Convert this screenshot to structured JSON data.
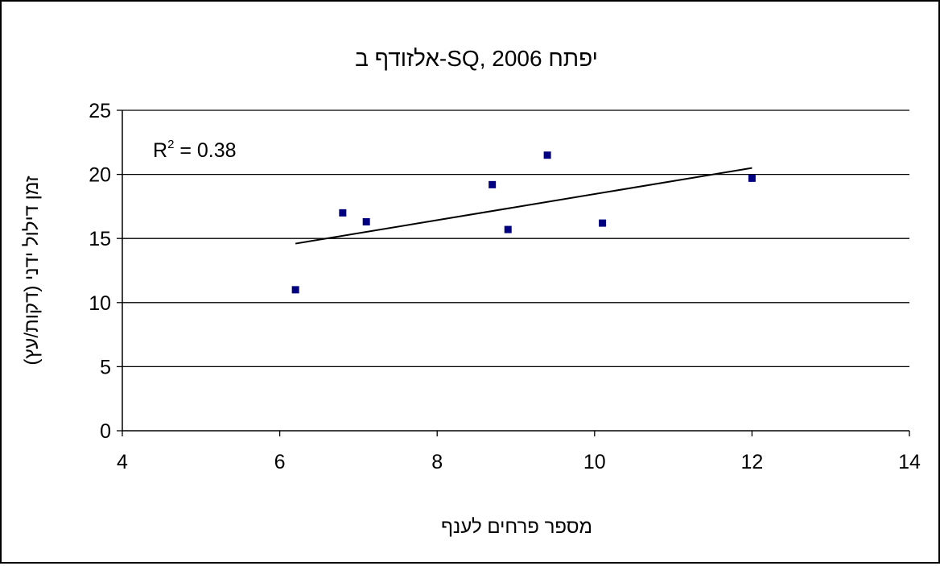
{
  "chart_data": {
    "type": "scatter",
    "title": "אלזודף ב-SQ, יפתח 2006",
    "xlabel": "מספר פרחים לענף",
    "ylabel": "זמן דילול ידני (דקות/עץ)",
    "xlim": [
      4,
      14
    ],
    "ylim": [
      0,
      25
    ],
    "x_ticks": [
      4,
      6,
      8,
      10,
      12,
      14
    ],
    "y_ticks": [
      0,
      5,
      10,
      15,
      20,
      25
    ],
    "grid": "horizontal",
    "legend": "none",
    "marker_color": "#000080",
    "points": [
      {
        "x": 6.2,
        "y": 11.0
      },
      {
        "x": 6.8,
        "y": 17.0
      },
      {
        "x": 7.1,
        "y": 16.3
      },
      {
        "x": 8.7,
        "y": 19.2
      },
      {
        "x": 8.9,
        "y": 15.7
      },
      {
        "x": 9.4,
        "y": 21.5
      },
      {
        "x": 10.1,
        "y": 16.2
      },
      {
        "x": 12.0,
        "y": 19.7
      }
    ],
    "trendline": {
      "type": "linear",
      "x": [
        6.2,
        12.0
      ],
      "y": [
        14.6,
        20.5
      ],
      "r2_prefix": "R",
      "r2_sup": "2",
      "r2_value": " = 0.38"
    }
  }
}
